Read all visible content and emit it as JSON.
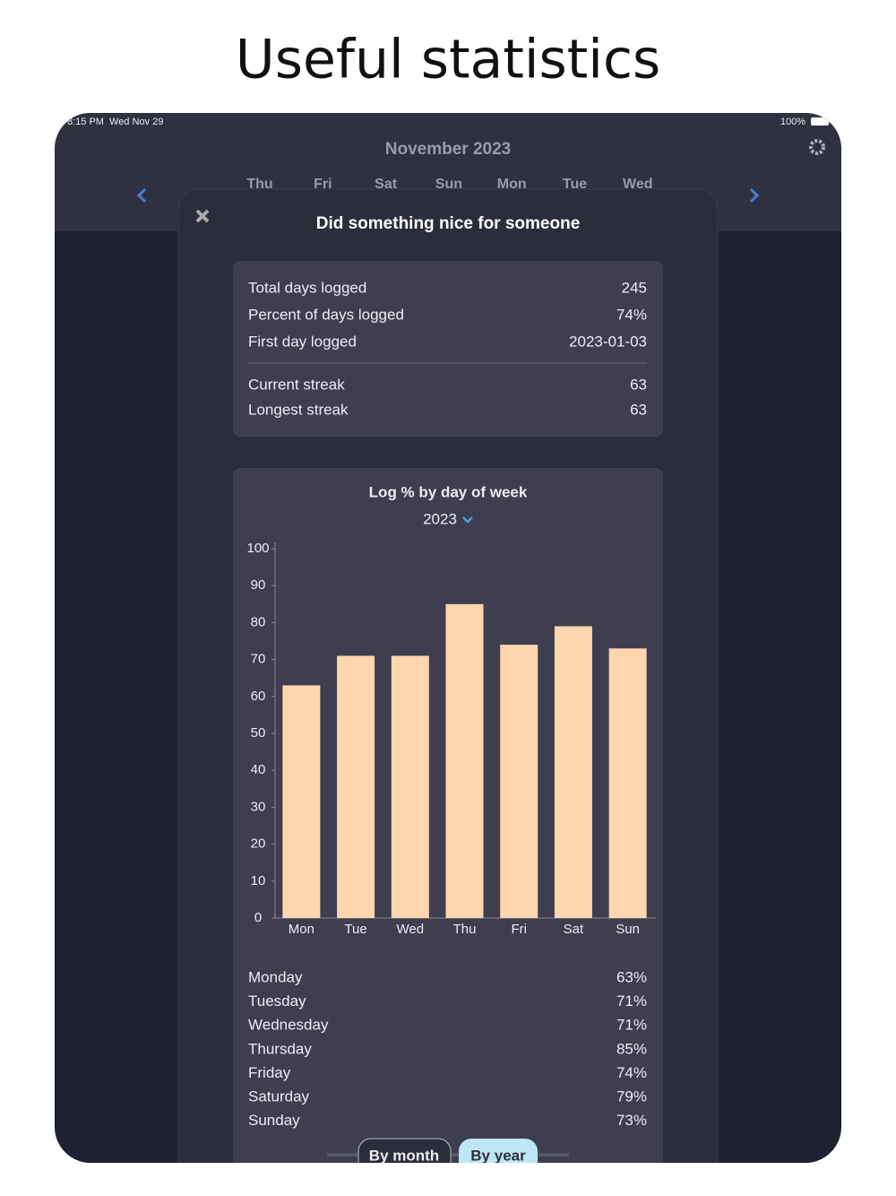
{
  "headline": "Useful statistics",
  "status_bar": {
    "time": "8:15 PM",
    "date": "Wed Nov 29",
    "battery": "100%"
  },
  "calendar": {
    "month": "November 2023",
    "weekdays": [
      "Thu",
      "Fri",
      "Sat",
      "Sun",
      "Mon",
      "Tue",
      "Wed"
    ]
  },
  "modal": {
    "title": "Did something nice for someone",
    "stats": [
      [
        "Total days logged",
        "245"
      ],
      [
        "Percent of days logged",
        "74%"
      ],
      [
        "First day logged",
        "2023-01-03"
      ]
    ],
    "streaks": [
      [
        "Current streak",
        "63"
      ],
      [
        "Longest streak",
        "63"
      ]
    ]
  },
  "chart_data": {
    "type": "bar",
    "title": "Log % by day of week",
    "year": "2023",
    "categories": [
      "Mon",
      "Tue",
      "Wed",
      "Thu",
      "Fri",
      "Sat",
      "Sun"
    ],
    "values": [
      63,
      71,
      71,
      85,
      74,
      79,
      73
    ],
    "color": "#ffd6ad",
    "ylim": [
      0,
      100
    ],
    "yticks": [
      0,
      10,
      20,
      30,
      40,
      50,
      60,
      70,
      80,
      90,
      100
    ]
  },
  "day_list": [
    [
      "Monday",
      "63%"
    ],
    [
      "Tuesday",
      "71%"
    ],
    [
      "Wednesday",
      "71%"
    ],
    [
      "Thursday",
      "85%"
    ],
    [
      "Friday",
      "74%"
    ],
    [
      "Saturday",
      "79%"
    ],
    [
      "Sunday",
      "73%"
    ]
  ],
  "tabs": [
    "By month",
    "By year"
  ]
}
